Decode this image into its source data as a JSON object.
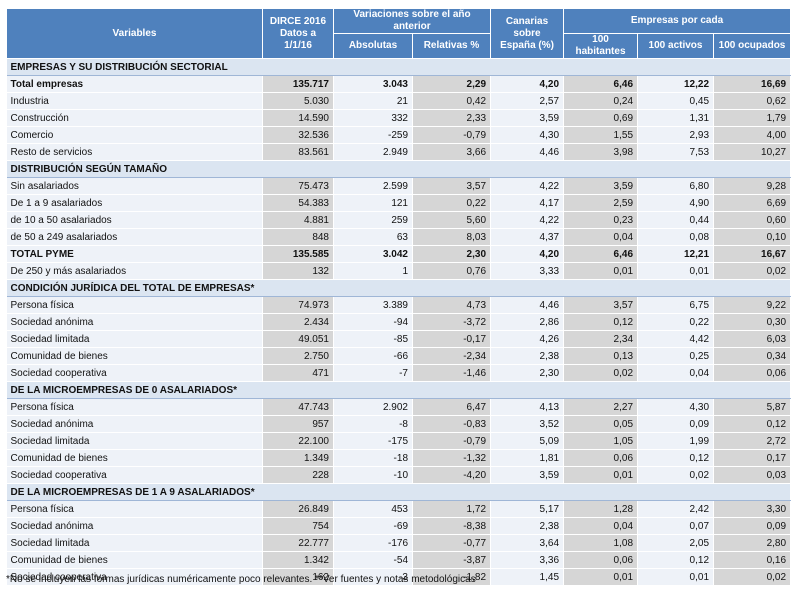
{
  "header": {
    "variables": "Variables",
    "dirce": [
      "DIRCE 2016",
      "Datos a 1/1/16"
    ],
    "variaciones": {
      "title": "Variaciones sobre el año anterior",
      "sub": [
        "Absolutas",
        "Relativas %"
      ]
    },
    "canarias": [
      "Canarias sobre",
      "España (%)"
    ],
    "empresas": {
      "title": "Empresas por cada",
      "sub": [
        "100 habitantes",
        "100 activos",
        "100 ocupados"
      ]
    }
  },
  "sections": [
    {
      "title": "EMPRESAS Y SU DISTRIBUCIÓN SECTORIAL",
      "rows": [
        {
          "label": "Total empresas",
          "emphasis": true,
          "cells": [
            "135.717",
            "3.043",
            "2,29",
            "4,20",
            "6,46",
            "12,22",
            "16,69"
          ]
        },
        {
          "label": "Industria",
          "cells": [
            "5.030",
            "21",
            "0,42",
            "2,57",
            "0,24",
            "0,45",
            "0,62"
          ]
        },
        {
          "label": "Construcción",
          "cells": [
            "14.590",
            "332",
            "2,33",
            "3,59",
            "0,69",
            "1,31",
            "1,79"
          ]
        },
        {
          "label": "Comercio",
          "cells": [
            "32.536",
            "-259",
            "-0,79",
            "4,30",
            "1,55",
            "2,93",
            "4,00"
          ]
        },
        {
          "label": "Resto de servicios",
          "cells": [
            "83.561",
            "2.949",
            "3,66",
            "4,46",
            "3,98",
            "7,53",
            "10,27"
          ]
        }
      ]
    },
    {
      "title": "DISTRIBUCIÓN SEGÚN TAMAÑO",
      "rows": [
        {
          "label": "Sin asalariados",
          "cells": [
            "75.473",
            "2.599",
            "3,57",
            "4,22",
            "3,59",
            "6,80",
            "9,28"
          ]
        },
        {
          "label": "De 1 a 9 asalariados",
          "cells": [
            "54.383",
            "121",
            "0,22",
            "4,17",
            "2,59",
            "4,90",
            "6,69"
          ]
        },
        {
          "label": "de 10 a 50 asalariados",
          "cells": [
            "4.881",
            "259",
            "5,60",
            "4,22",
            "0,23",
            "0,44",
            "0,60"
          ]
        },
        {
          "label": "de 50 a 249 asalariados",
          "cells": [
            "848",
            "63",
            "8,03",
            "4,37",
            "0,04",
            "0,08",
            "0,10"
          ]
        },
        {
          "label": "TOTAL PYME",
          "emphasis": true,
          "cells": [
            "135.585",
            "3.042",
            "2,30",
            "4,20",
            "6,46",
            "12,21",
            "16,67"
          ]
        },
        {
          "label": "De 250 y más asalariados",
          "cells": [
            "132",
            "1",
            "0,76",
            "3,33",
            "0,01",
            "0,01",
            "0,02"
          ]
        }
      ]
    },
    {
      "title": "CONDICIÓN JURÍDICA DEL TOTAL DE EMPRESAS*",
      "rows": [
        {
          "label": "Persona física",
          "cells": [
            "74.973",
            "3.389",
            "4,73",
            "4,46",
            "3,57",
            "6,75",
            "9,22"
          ]
        },
        {
          "label": "Sociedad anónima",
          "cells": [
            "2.434",
            "-94",
            "-3,72",
            "2,86",
            "0,12",
            "0,22",
            "0,30"
          ]
        },
        {
          "label": "Sociedad limitada",
          "cells": [
            "49.051",
            "-85",
            "-0,17",
            "4,26",
            "2,34",
            "4,42",
            "6,03"
          ]
        },
        {
          "label": "Comunidad de bienes",
          "cells": [
            "2.750",
            "-66",
            "-2,34",
            "2,38",
            "0,13",
            "0,25",
            "0,34"
          ]
        },
        {
          "label": "Sociedad cooperativa",
          "cells": [
            "471",
            "-7",
            "-1,46",
            "2,30",
            "0,02",
            "0,04",
            "0,06"
          ]
        }
      ]
    },
    {
      "title": "DE LA MICROEMPRESAS DE 0 ASALARIADOS*",
      "rows": [
        {
          "label": "Persona física",
          "cells": [
            "47.743",
            "2.902",
            "6,47",
            "4,13",
            "2,27",
            "4,30",
            "5,87"
          ]
        },
        {
          "label": "Sociedad anónima",
          "cells": [
            "957",
            "-8",
            "-0,83",
            "3,52",
            "0,05",
            "0,09",
            "0,12"
          ]
        },
        {
          "label": "Sociedad limitada",
          "cells": [
            "22.100",
            "-175",
            "-0,79",
            "5,09",
            "1,05",
            "1,99",
            "2,72"
          ]
        },
        {
          "label": "Comunidad de bienes",
          "cells": [
            "1.349",
            "-18",
            "-1,32",
            "1,81",
            "0,06",
            "0,12",
            "0,17"
          ]
        },
        {
          "label": "Sociedad cooperativa",
          "cells": [
            "228",
            "-10",
            "-4,20",
            "3,59",
            "0,01",
            "0,02",
            "0,03"
          ]
        }
      ]
    },
    {
      "title": "DE LA MICROEMPRESAS DE 1 A 9 ASALARIADOS*",
      "rows": [
        {
          "label": "Persona física",
          "cells": [
            "26.849",
            "453",
            "1,72",
            "5,17",
            "1,28",
            "2,42",
            "3,30"
          ]
        },
        {
          "label": "Sociedad anónima",
          "cells": [
            "754",
            "-69",
            "-8,38",
            "2,38",
            "0,04",
            "0,07",
            "0,09"
          ]
        },
        {
          "label": "Sociedad limitada",
          "cells": [
            "22.777",
            "-176",
            "-0,77",
            "3,64",
            "1,08",
            "2,05",
            "2,80"
          ]
        },
        {
          "label": "Comunidad de bienes",
          "cells": [
            "1.342",
            "-54",
            "-3,87",
            "3,36",
            "0,06",
            "0,12",
            "0,16"
          ]
        },
        {
          "label": "Sociedad cooperativa",
          "cells": [
            "162",
            "-3",
            "-1,82",
            "1,45",
            "0,01",
            "0,01",
            "0,02"
          ]
        }
      ]
    }
  ],
  "footnote": "*No se incluyen las formas jurídicas numéricamente poco relevantes. **Ver fuentes y notas metodológicas"
}
